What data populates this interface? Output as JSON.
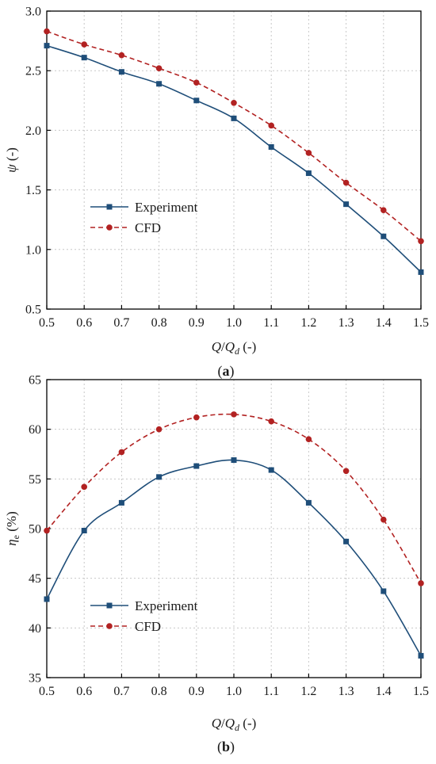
{
  "colors": {
    "experiment": "#1f4e79",
    "cfd": "#b22222",
    "grid": "#c8c8c8",
    "axis": "#000000"
  },
  "chart_data": [
    {
      "type": "line",
      "panel": "a",
      "panel_label": {
        "pre": "(",
        "letter": "a",
        "post": ")"
      },
      "x": [
        0.5,
        0.6,
        0.7,
        0.8,
        0.9,
        1.0,
        1.1,
        1.2,
        1.3,
        1.4,
        1.5
      ],
      "xlim": [
        0.5,
        1.5
      ],
      "ylim": [
        0.5,
        3.0
      ],
      "xticks": [
        "0.5",
        "0.6",
        "0.7",
        "0.8",
        "0.9",
        "1.0",
        "1.1",
        "1.2",
        "1.3",
        "1.4",
        "1.5"
      ],
      "yticks": [
        "0.5",
        "1.0",
        "1.5",
        "2.0",
        "2.5",
        "3.0"
      ],
      "xlabel": {
        "q": "Q",
        "slash": "/",
        "qd": "Q",
        "sub": "d",
        "unit": " (-)"
      },
      "ylabel": {
        "symbol": "ψ",
        "sub": "",
        "unit": " (-)"
      },
      "grid": true,
      "legend_position": "left",
      "series": [
        {
          "name": "Experiment",
          "style": "solid",
          "marker": "square",
          "values": [
            2.71,
            2.61,
            2.49,
            2.39,
            2.25,
            2.1,
            1.86,
            1.64,
            1.38,
            1.11,
            0.81
          ]
        },
        {
          "name": "CFD",
          "style": "dashed",
          "marker": "circle",
          "values": [
            2.83,
            2.72,
            2.63,
            2.52,
            2.4,
            2.23,
            2.04,
            1.81,
            1.56,
            1.33,
            1.07
          ]
        }
      ]
    },
    {
      "type": "line",
      "panel": "b",
      "panel_label": {
        "pre": "(",
        "letter": "b",
        "post": ")"
      },
      "x": [
        0.5,
        0.6,
        0.7,
        0.8,
        0.9,
        1.0,
        1.1,
        1.2,
        1.3,
        1.4,
        1.5
      ],
      "xlim": [
        0.5,
        1.5
      ],
      "ylim": [
        35,
        65
      ],
      "xticks": [
        "0.5",
        "0.6",
        "0.7",
        "0.8",
        "0.9",
        "1.0",
        "1.1",
        "1.2",
        "1.3",
        "1.4",
        "1.5"
      ],
      "yticks": [
        "35",
        "40",
        "45",
        "50",
        "55",
        "60",
        "65"
      ],
      "xlabel": {
        "q": "Q",
        "slash": "/",
        "qd": "Q",
        "sub": "d",
        "unit": " (-)"
      },
      "ylabel": {
        "symbol": "η",
        "sub": "e",
        "unit": " (%)"
      },
      "grid": true,
      "legend_position": "lower-left",
      "series": [
        {
          "name": "Experiment",
          "style": "solid",
          "marker": "square",
          "values": [
            42.9,
            49.8,
            52.6,
            55.2,
            56.3,
            56.9,
            55.9,
            52.6,
            48.7,
            43.7,
            37.2
          ]
        },
        {
          "name": "CFD",
          "style": "dashed",
          "marker": "circle",
          "values": [
            49.8,
            54.2,
            57.7,
            60.0,
            61.2,
            61.5,
            60.8,
            59.0,
            55.8,
            50.9,
            44.5
          ]
        }
      ]
    }
  ]
}
